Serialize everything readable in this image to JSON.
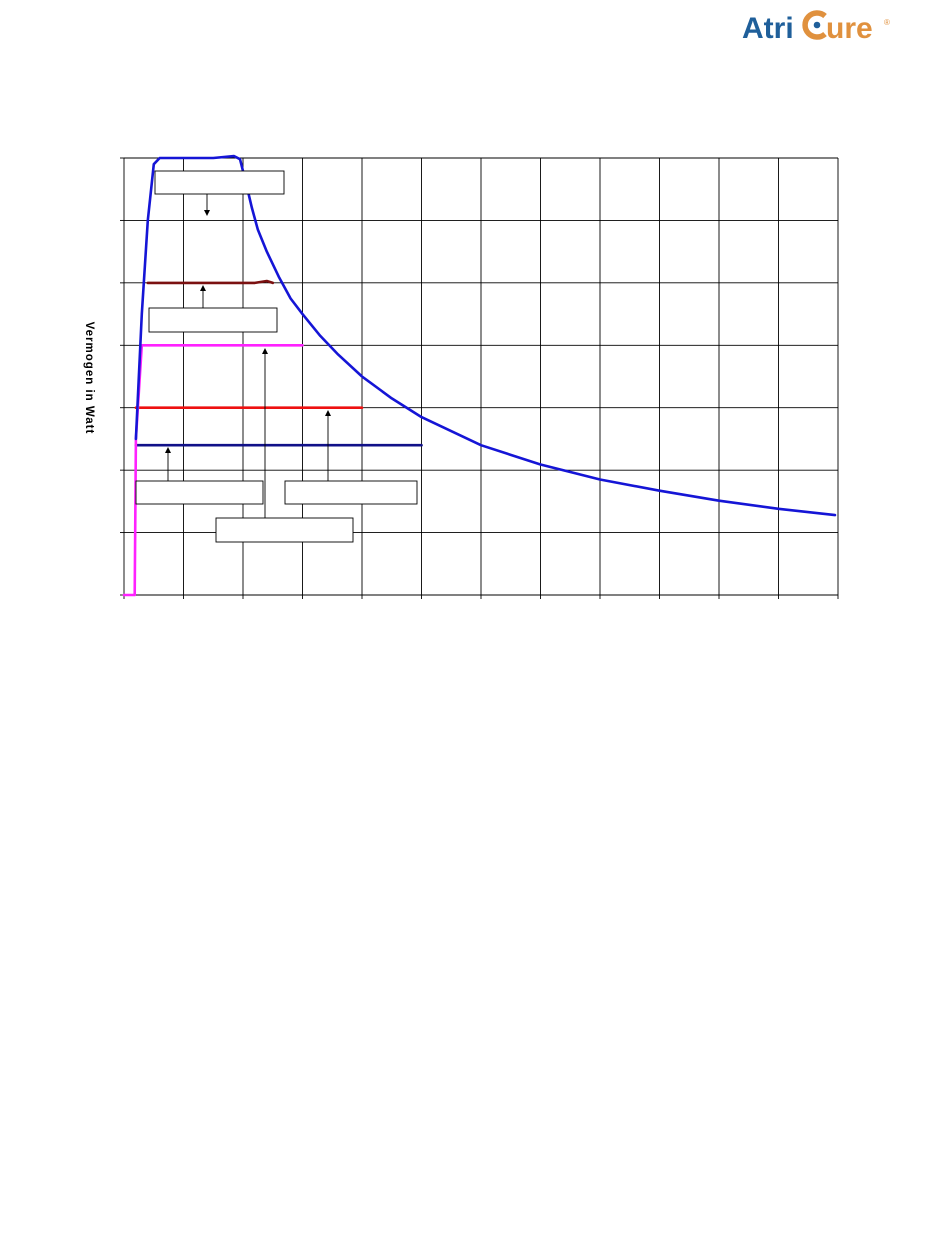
{
  "logo": {
    "part1": "Atri",
    "part2": "ure",
    "registered": "®",
    "colors": {
      "primary": "#1f5f9a",
      "accent": "#e0913e"
    }
  },
  "chart_data": {
    "type": "line",
    "title": "",
    "xlabel": "",
    "ylabel": "Vermogen in Watt",
    "xlim": [
      0,
      12
    ],
    "ylim": [
      0,
      7
    ],
    "grid": true,
    "x_ticks": 12,
    "y_ticks": 7,
    "series": [
      {
        "color": "#1515d6",
        "points": [
          [
            0.2,
            2.5
          ],
          [
            0.3,
            4.5
          ],
          [
            0.4,
            6.0
          ],
          [
            0.5,
            6.9
          ],
          [
            0.6,
            7.0
          ],
          [
            1.0,
            7.0
          ],
          [
            1.5,
            7.0
          ],
          [
            1.85,
            7.03
          ],
          [
            1.95,
            6.98
          ],
          [
            2.05,
            6.6
          ],
          [
            2.15,
            6.2
          ],
          [
            2.25,
            5.85
          ],
          [
            2.4,
            5.5
          ],
          [
            2.6,
            5.1
          ],
          [
            2.8,
            4.75
          ],
          [
            3.0,
            4.5
          ],
          [
            3.3,
            4.15
          ],
          [
            3.6,
            3.85
          ],
          [
            4.0,
            3.5
          ],
          [
            4.5,
            3.15
          ],
          [
            5.0,
            2.85
          ],
          [
            6.0,
            2.4
          ],
          [
            7.0,
            2.09
          ],
          [
            8.0,
            1.85
          ],
          [
            9.0,
            1.67
          ],
          [
            10.0,
            1.51
          ],
          [
            11.0,
            1.38
          ],
          [
            11.95,
            1.28
          ]
        ]
      },
      {
        "color": "#7b1010",
        "points": [
          [
            0.4,
            5.0
          ],
          [
            1.0,
            5.0
          ],
          [
            1.5,
            5.0
          ],
          [
            2.2,
            5.0
          ],
          [
            2.4,
            5.03
          ],
          [
            2.5,
            5.0
          ]
        ]
      },
      {
        "color": "#ff22ff",
        "points": [
          [
            0.0,
            0.0
          ],
          [
            0.18,
            0.0
          ],
          [
            0.2,
            2.5
          ],
          [
            0.3,
            4.0
          ],
          [
            0.5,
            4.0
          ],
          [
            1.0,
            4.0
          ],
          [
            2.0,
            4.0
          ],
          [
            2.8,
            4.0
          ],
          [
            3.0,
            4.0
          ]
        ]
      },
      {
        "color": "#ee1111",
        "points": [
          [
            0.2,
            3.0
          ],
          [
            1.0,
            3.0
          ],
          [
            2.0,
            3.0
          ],
          [
            3.0,
            3.0
          ],
          [
            4.0,
            3.0
          ]
        ]
      },
      {
        "color": "#111188",
        "points": [
          [
            0.2,
            2.4
          ],
          [
            1.0,
            2.4
          ],
          [
            2.0,
            2.4
          ],
          [
            3.0,
            2.4
          ],
          [
            4.0,
            2.4
          ],
          [
            5.0,
            2.4
          ]
        ]
      }
    ],
    "annotations": [
      {
        "text": "",
        "target": [
          1.4,
          7.0
        ]
      },
      {
        "text": "",
        "target": [
          1.3,
          5.0
        ]
      },
      {
        "text": "",
        "target": [
          2.4,
          4.0
        ]
      },
      {
        "text": "",
        "target": [
          0.75,
          2.4
        ]
      },
      {
        "text": "",
        "target": [
          3.4,
          3.0
        ]
      }
    ]
  }
}
